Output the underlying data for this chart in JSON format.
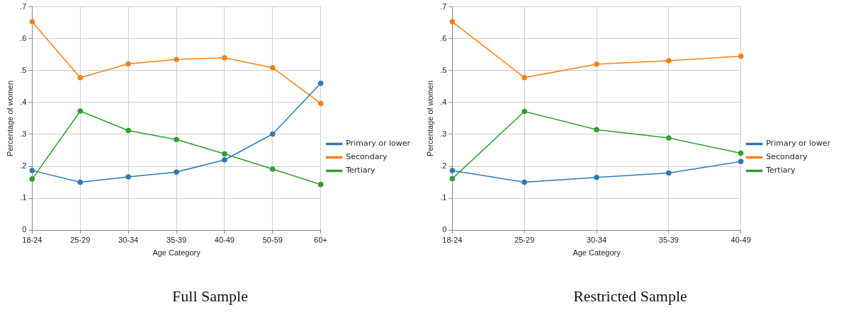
{
  "chart_data": [
    {
      "type": "line",
      "title": "Full Sample",
      "xlabel": "Age Category",
      "ylabel": "Percentage of women",
      "categories": [
        "18-24",
        "25-29",
        "30-34",
        "35-39",
        "40-49",
        "50-59",
        "60+"
      ],
      "series": [
        {
          "name": "Primary or lower",
          "color": "#2a7ab9",
          "values": [
            0.187,
            0.15,
            0.167,
            0.182,
            0.22,
            0.301,
            0.46
          ]
        },
        {
          "name": "Secondary",
          "color": "#ff7f0e",
          "values": [
            0.653,
            0.478,
            0.521,
            0.535,
            0.54,
            0.509,
            0.397
          ]
        },
        {
          "name": "Tertiary",
          "color": "#2ca02c",
          "values": [
            0.16,
            0.373,
            0.312,
            0.284,
            0.239,
            0.191,
            0.143
          ]
        }
      ],
      "ylim": [
        0,
        0.7
      ],
      "yticks": [
        0,
        {
          "value": 0.1,
          "label": ".1"
        },
        {
          "value": 0.2,
          "label": ".2"
        },
        {
          "value": 0.3,
          "label": ".3"
        },
        {
          "value": 0.4,
          "label": ".4"
        },
        {
          "value": 0.5,
          "label": ".5"
        },
        {
          "value": 0.6,
          "label": ".6"
        },
        {
          "value": 0.7,
          "label": ".7"
        }
      ],
      "grid": true,
      "legend": "right",
      "marker": "circle",
      "line_style": "solid"
    },
    {
      "type": "line",
      "title": "Restricted Sample",
      "xlabel": "Age Category",
      "ylabel": "Percentage of women",
      "categories": [
        "18-24",
        "25-29",
        "30-34",
        "35-39",
        "40-49"
      ],
      "series": [
        {
          "name": "Primary or lower",
          "color": "#2a7ab9",
          "values": [
            0.187,
            0.15,
            0.165,
            0.179,
            0.215
          ]
        },
        {
          "name": "Secondary",
          "color": "#ff7f0e",
          "values": [
            0.653,
            0.478,
            0.52,
            0.531,
            0.545
          ]
        },
        {
          "name": "Tertiary",
          "color": "#2ca02c",
          "values": [
            0.161,
            0.372,
            0.315,
            0.289,
            0.241
          ]
        }
      ],
      "ylim": [
        0,
        0.7
      ],
      "yticks": [
        0,
        {
          "value": 0.1,
          "label": ".1"
        },
        {
          "value": 0.2,
          "label": ".2"
        },
        {
          "value": 0.3,
          "label": ".3"
        },
        {
          "value": 0.4,
          "label": ".4"
        },
        {
          "value": 0.5,
          "label": ".5"
        },
        {
          "value": 0.6,
          "label": ".6"
        },
        {
          "value": 0.7,
          "label": ".7"
        }
      ],
      "grid": true,
      "legend": "right",
      "marker": "circle",
      "line_style": "solid"
    }
  ]
}
